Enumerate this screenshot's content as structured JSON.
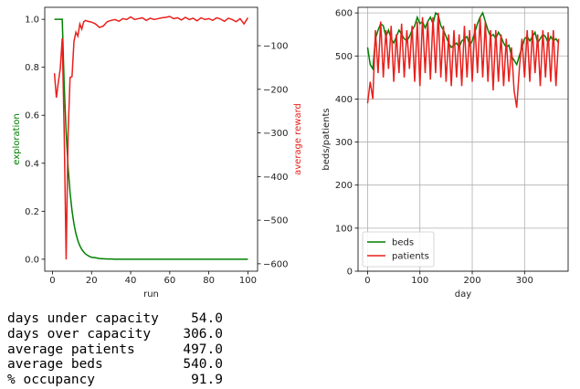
{
  "chart_data": [
    {
      "type": "line",
      "xlabel": "run",
      "ylabel": "exploration",
      "y2label": "average reward",
      "x": [
        1,
        2,
        3,
        4,
        5,
        6,
        7,
        8,
        9,
        10,
        11,
        12,
        13,
        14,
        15,
        16,
        17,
        18,
        19,
        20,
        22,
        24,
        26,
        28,
        30,
        32,
        34,
        36,
        38,
        40,
        42,
        44,
        46,
        48,
        50,
        52,
        54,
        56,
        58,
        60,
        62,
        64,
        66,
        68,
        70,
        72,
        74,
        76,
        78,
        80,
        82,
        84,
        86,
        88,
        90,
        92,
        94,
        96,
        98,
        100
      ],
      "series": [
        {
          "name": "exploration",
          "color": "green",
          "axis": "y",
          "values": [
            1.0,
            1.0,
            1.0,
            1.0,
            1.0,
            0.726,
            0.527,
            0.383,
            0.278,
            0.202,
            0.147,
            0.106,
            0.077,
            0.056,
            0.041,
            0.03,
            0.021,
            0.016,
            0.011,
            0.008,
            0.006,
            0.003,
            0.002,
            0.001,
            0.001,
            0,
            0,
            0,
            0,
            0,
            0,
            0,
            0,
            0,
            0,
            0,
            0,
            0,
            0,
            0,
            0,
            0,
            0,
            0,
            0,
            0,
            0,
            0,
            0,
            0,
            0,
            0,
            0,
            0,
            0,
            0,
            0,
            0,
            0,
            0
          ]
        },
        {
          "name": "average reward",
          "color": "#e8201c",
          "axis": "y2",
          "values": [
            -163,
            -219,
            -184,
            -152,
            -83,
            -300,
            -590,
            -300,
            -173,
            -171,
            -90,
            -69,
            -78,
            -50,
            -62,
            -45,
            -42,
            -44,
            -45,
            -46,
            -50,
            -58,
            -55,
            -45,
            -42,
            -40,
            -44,
            -38,
            -40,
            -34,
            -40,
            -38,
            -36,
            -42,
            -37,
            -40,
            -38,
            -36,
            -35,
            -33,
            -38,
            -36,
            -41,
            -35,
            -40,
            -37,
            -43,
            -36,
            -40,
            -38,
            -42,
            -36,
            -39,
            -44,
            -37,
            -40,
            -45,
            -38,
            -50,
            -36
          ]
        }
      ],
      "xlim": [
        -3.95,
        104.95
      ],
      "xticks": [
        0,
        20,
        40,
        60,
        80,
        100
      ],
      "ylim": [
        -0.05,
        1.05
      ],
      "yticks": [
        {
          "value": 0,
          "label": "0.0"
        },
        0.2,
        0.4,
        0.6,
        0.8,
        {
          "value": 1,
          "label": "1.0"
        }
      ],
      "y2lim": [
        -617,
        -12
      ],
      "y2ticks": [
        {
          "value": -600,
          "label": "−600"
        },
        {
          "value": -500,
          "label": "−500"
        },
        {
          "value": -400,
          "label": "−400"
        },
        {
          "value": -300,
          "label": "−300"
        },
        {
          "value": -200,
          "label": "−200"
        },
        {
          "value": -100,
          "label": "−100"
        }
      ],
      "grid": false
    },
    {
      "type": "line",
      "xlabel": "day",
      "ylabel": "beds/patients",
      "x": [
        0,
        5,
        10,
        15,
        20,
        25,
        30,
        35,
        40,
        45,
        50,
        55,
        60,
        65,
        70,
        75,
        80,
        85,
        90,
        95,
        100,
        105,
        110,
        115,
        120,
        125,
        130,
        135,
        140,
        145,
        150,
        155,
        160,
        165,
        170,
        175,
        180,
        185,
        190,
        195,
        200,
        205,
        210,
        215,
        220,
        225,
        230,
        235,
        240,
        245,
        250,
        255,
        260,
        265,
        270,
        275,
        280,
        285,
        290,
        295,
        300,
        305,
        310,
        315,
        320,
        325,
        330,
        335,
        340,
        345,
        350,
        355,
        360,
        365
      ],
      "series": [
        {
          "name": "beds",
          "color": "green",
          "axis": "y",
          "values": [
            520,
            480,
            470,
            540,
            560,
            575,
            570,
            545,
            560,
            540,
            530,
            545,
            560,
            550,
            540,
            535,
            545,
            560,
            570,
            590,
            575,
            580,
            565,
            580,
            590,
            575,
            600,
            595,
            570,
            560,
            545,
            530,
            520,
            525,
            530,
            520,
            535,
            540,
            545,
            525,
            535,
            555,
            575,
            590,
            600,
            580,
            560,
            545,
            550,
            540,
            555,
            545,
            530,
            520,
            525,
            500,
            490,
            480,
            500,
            520,
            540,
            545,
            535,
            545,
            555,
            530,
            540,
            550,
            545,
            530,
            545,
            535,
            540,
            530
          ]
        },
        {
          "name": "patients",
          "color": "#e8201c",
          "axis": "y",
          "values": [
            390,
            440,
            400,
            560,
            460,
            580,
            450,
            560,
            470,
            570,
            440,
            550,
            460,
            575,
            450,
            560,
            470,
            570,
            440,
            580,
            430,
            590,
            460,
            580,
            445,
            590,
            460,
            600,
            450,
            570,
            440,
            550,
            430,
            560,
            450,
            550,
            430,
            570,
            450,
            560,
            440,
            575,
            460,
            590,
            450,
            580,
            440,
            560,
            420,
            560,
            440,
            550,
            430,
            540,
            440,
            520,
            420,
            380,
            470,
            540,
            450,
            560,
            440,
            560,
            460,
            550,
            430,
            560,
            450,
            555,
            440,
            560,
            430,
            540
          ]
        }
      ],
      "xlim": [
        -18.25,
        383.25
      ],
      "xticks": [
        0,
        100,
        200,
        300
      ],
      "ylim": [
        0,
        613
      ],
      "yticks": [
        0,
        100,
        200,
        300,
        400,
        500,
        600
      ],
      "grid": true,
      "legend": "lower left"
    }
  ],
  "summary": {
    "rows": [
      [
        "days under capacity",
        "54.0"
      ],
      [
        "days over capacity",
        "306.0"
      ],
      [
        "average patients",
        "497.0"
      ],
      [
        "average beds",
        "540.0"
      ],
      [
        "% occupancy",
        "91.9"
      ]
    ]
  }
}
